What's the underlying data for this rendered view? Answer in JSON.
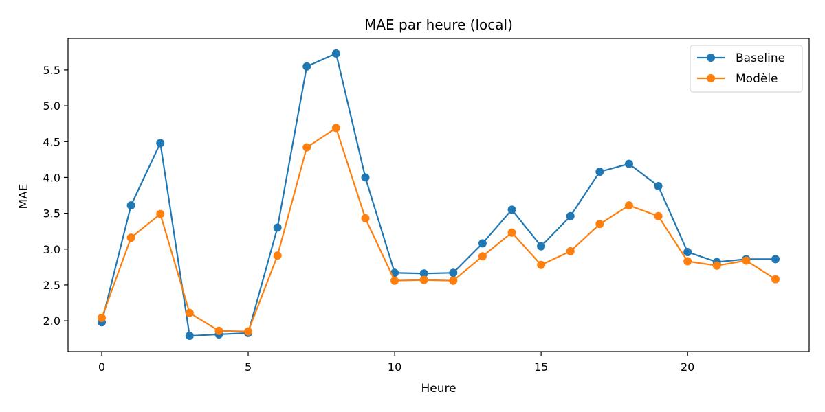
{
  "chart_data": {
    "type": "line",
    "title": "MAE par heure (local)",
    "xlabel": "Heure",
    "ylabel": "MAE",
    "x": [
      0,
      1,
      2,
      3,
      4,
      5,
      6,
      7,
      8,
      9,
      10,
      11,
      12,
      13,
      14,
      15,
      16,
      17,
      18,
      19,
      20,
      21,
      22,
      23
    ],
    "xlim": [
      -1.15,
      24.15
    ],
    "ylim": [
      1.57,
      5.94
    ],
    "xticks": [
      0,
      5,
      10,
      15,
      20
    ],
    "yticks": [
      2.0,
      2.5,
      3.0,
      3.5,
      4.0,
      4.5,
      5.0,
      5.5
    ],
    "grid": false,
    "legend_position": "top-right",
    "series": [
      {
        "name": "Baseline",
        "color": "#1f77b4",
        "values": [
          1.98,
          3.61,
          4.48,
          1.79,
          1.81,
          1.83,
          3.3,
          5.55,
          5.73,
          4.0,
          2.67,
          2.66,
          2.67,
          3.08,
          3.55,
          3.04,
          3.46,
          4.08,
          4.19,
          3.88,
          2.96,
          2.82,
          2.86,
          2.86
        ]
      },
      {
        "name": "Modèle",
        "color": "#ff7f0e",
        "values": [
          2.04,
          3.16,
          3.49,
          2.11,
          1.86,
          1.85,
          2.91,
          4.42,
          4.69,
          3.43,
          2.56,
          2.57,
          2.56,
          2.9,
          3.23,
          2.78,
          2.97,
          3.35,
          3.61,
          3.46,
          2.83,
          2.77,
          2.84,
          2.58
        ]
      }
    ]
  }
}
